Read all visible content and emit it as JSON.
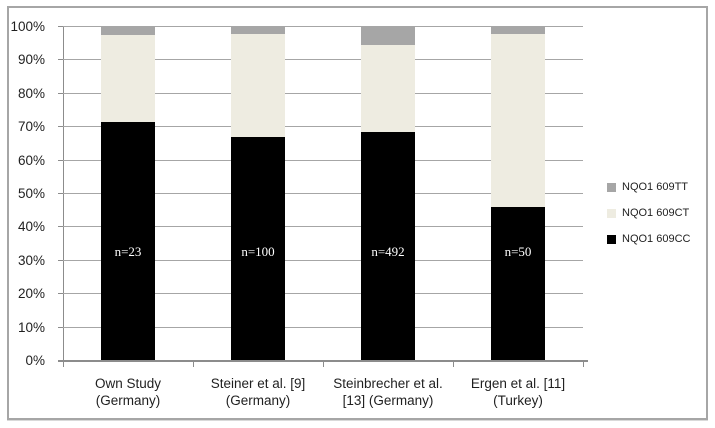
{
  "figure": {
    "background_color": "#ffffff",
    "border_color": "#a6a6a6",
    "gridline_color": "#a6a6a6",
    "axis_color": "#8c8c8c",
    "text_color": "#1f1f1f"
  },
  "chart_data": {
    "type": "bar",
    "stacked": true,
    "orientation": "vertical",
    "title": "",
    "xlabel": "",
    "ylabel": "",
    "ylim": [
      0,
      100
    ],
    "y_tick_step": 10,
    "y_tick_labels": [
      "0%",
      "10%",
      "20%",
      "30%",
      "40%",
      "50%",
      "60%",
      "70%",
      "80%",
      "90%",
      "100%"
    ],
    "grid": true,
    "legend_position": "right",
    "categories": [
      {
        "label_lines": [
          "Own Study",
          "(Germany)"
        ],
        "n_label": "n=23"
      },
      {
        "label_lines": [
          "Steiner et al. [9]",
          "(Germany)"
        ],
        "n_label": "n=100"
      },
      {
        "label_lines": [
          "Steinbrecher et al.",
          "[13] (Germany)"
        ],
        "n_label": "n=492"
      },
      {
        "label_lines": [
          "Ergen et al. [11]",
          "(Turkey)"
        ],
        "n_label": "n=50"
      }
    ],
    "series": [
      {
        "name": "NQO1 609CC",
        "color": "#000000",
        "values": [
          71.5,
          67.0,
          68.5,
          46.0
        ]
      },
      {
        "name": "NQO1 609CT",
        "color": "#eeece1",
        "values": [
          26.0,
          31.0,
          26.2,
          52.0
        ]
      },
      {
        "name": "NQO1 609TT",
        "color": "#a6a6a6",
        "values": [
          2.5,
          2.0,
          5.3,
          2.0
        ]
      }
    ],
    "legend_order_top_to_bottom": [
      "NQO1 609TT",
      "NQO1 609CT",
      "NQO1 609CC"
    ]
  }
}
